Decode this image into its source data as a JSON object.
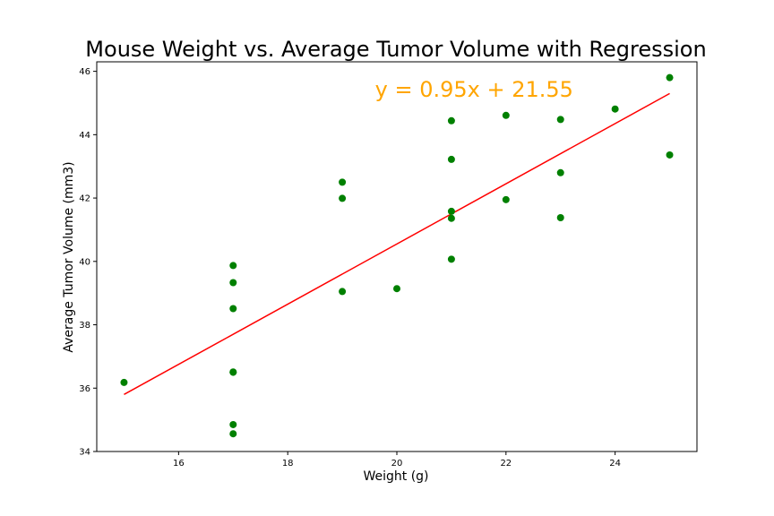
{
  "chart_data": {
    "type": "scatter",
    "title": "Mouse Weight vs. Average Tumor Volume with Regression",
    "xlabel": "Weight (g)",
    "ylabel": "Average Tumor Volume (mm3)",
    "xlim": [
      14.5,
      25.5
    ],
    "ylim": [
      34,
      46.3
    ],
    "xticks": [
      16,
      18,
      20,
      22,
      24
    ],
    "yticks": [
      34,
      36,
      38,
      40,
      42,
      44,
      46
    ],
    "grid": false,
    "series": [
      {
        "type": "scatter",
        "color": "#008000",
        "points": [
          {
            "x": 15,
            "y": 36.18
          },
          {
            "x": 17,
            "y": 39.87
          },
          {
            "x": 17,
            "y": 39.33
          },
          {
            "x": 17,
            "y": 38.51
          },
          {
            "x": 17,
            "y": 36.51
          },
          {
            "x": 17,
            "y": 36.5
          },
          {
            "x": 17,
            "y": 34.85
          },
          {
            "x": 17,
            "y": 34.56
          },
          {
            "x": 19,
            "y": 42.5
          },
          {
            "x": 19,
            "y": 41.99
          },
          {
            "x": 19,
            "y": 39.05
          },
          {
            "x": 20,
            "y": 39.14
          },
          {
            "x": 21,
            "y": 44.44
          },
          {
            "x": 21,
            "y": 43.22
          },
          {
            "x": 21,
            "y": 41.58
          },
          {
            "x": 21,
            "y": 41.36
          },
          {
            "x": 21,
            "y": 40.07
          },
          {
            "x": 22,
            "y": 44.61
          },
          {
            "x": 22,
            "y": 41.95
          },
          {
            "x": 23,
            "y": 44.48
          },
          {
            "x": 23,
            "y": 42.8
          },
          {
            "x": 23,
            "y": 41.38
          },
          {
            "x": 24,
            "y": 44.81
          },
          {
            "x": 25,
            "y": 45.8
          },
          {
            "x": 25,
            "y": 43.36
          }
        ]
      },
      {
        "type": "line",
        "color": "#ff0000",
        "slope": 0.95,
        "intercept": 21.55,
        "x": [
          15,
          25
        ]
      }
    ],
    "annotation": {
      "text": "y = 0.95x + 21.55",
      "x": 19.6,
      "y": 45.2,
      "color": "#ffa500"
    }
  }
}
